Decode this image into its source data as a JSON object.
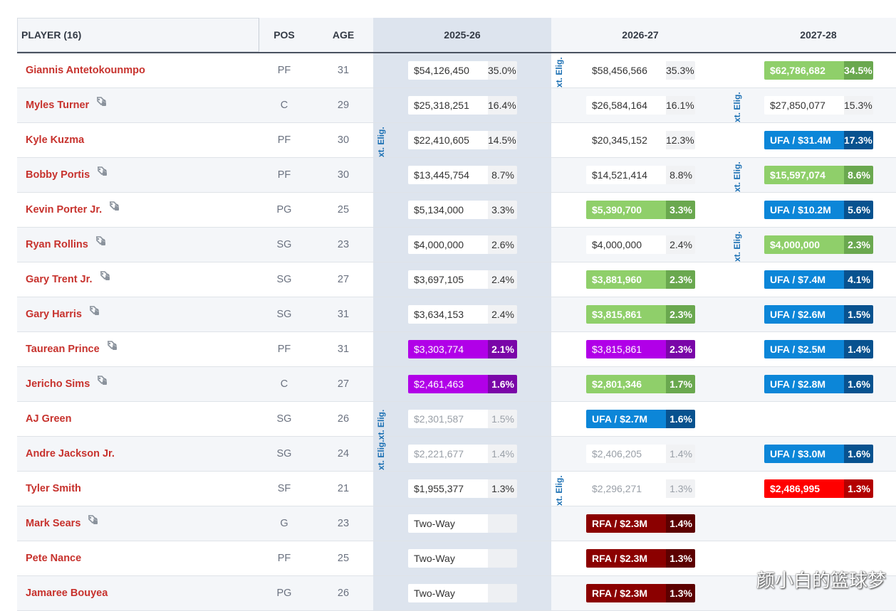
{
  "header": {
    "player": "PLAYER (16)",
    "pos": "POS",
    "age": "AGE",
    "seasons": [
      "2025-26",
      "2026-27",
      "2027-28"
    ]
  },
  "players": [
    {
      "name": "Giannis Antetokounmpo",
      "icon": false,
      "pos": "PF",
      "age": "31",
      "y1": {
        "amt": "$54,126,450",
        "pct": "35.0%",
        "style": "white"
      },
      "y2": {
        "amt": "$58,456,566",
        "pct": "35.3%",
        "style": "white"
      },
      "y3": {
        "amt": "$62,786,682",
        "pct": "34.5%",
        "style": "green"
      }
    },
    {
      "name": "Myles Turner",
      "icon": true,
      "pos": "C",
      "age": "29",
      "y1": {
        "amt": "$25,318,251",
        "pct": "16.4%",
        "style": "white"
      },
      "y2": {
        "amt": "$26,584,164",
        "pct": "16.1%",
        "style": "white"
      },
      "y3": {
        "amt": "$27,850,077",
        "pct": "15.3%",
        "style": "white"
      }
    },
    {
      "name": "Kyle Kuzma",
      "icon": false,
      "pos": "PF",
      "age": "30",
      "y1": {
        "amt": "$22,410,605",
        "pct": "14.5%",
        "style": "white"
      },
      "y2": {
        "amt": "$20,345,152",
        "pct": "12.3%",
        "style": "white"
      },
      "y3": {
        "amt": "UFA / $31.4M",
        "pct": "17.3%",
        "style": "blue"
      }
    },
    {
      "name": "Bobby Portis",
      "icon": true,
      "pos": "PF",
      "age": "30",
      "y1": {
        "amt": "$13,445,754",
        "pct": "8.7%",
        "style": "white"
      },
      "y2": {
        "amt": "$14,521,414",
        "pct": "8.8%",
        "style": "white"
      },
      "y3": {
        "amt": "$15,597,074",
        "pct": "8.6%",
        "style": "green"
      }
    },
    {
      "name": "Kevin Porter Jr.",
      "icon": true,
      "pos": "PG",
      "age": "25",
      "y1": {
        "amt": "$5,134,000",
        "pct": "3.3%",
        "style": "white"
      },
      "y2": {
        "amt": "$5,390,700",
        "pct": "3.3%",
        "style": "green"
      },
      "y3": {
        "amt": "UFA / $10.2M",
        "pct": "5.6%",
        "style": "blue"
      }
    },
    {
      "name": "Ryan Rollins",
      "icon": true,
      "pos": "SG",
      "age": "23",
      "y1": {
        "amt": "$4,000,000",
        "pct": "2.6%",
        "style": "white"
      },
      "y2": {
        "amt": "$4,000,000",
        "pct": "2.4%",
        "style": "white"
      },
      "y3": {
        "amt": "$4,000,000",
        "pct": "2.3%",
        "style": "green"
      }
    },
    {
      "name": "Gary Trent Jr.",
      "icon": true,
      "pos": "SG",
      "age": "27",
      "y1": {
        "amt": "$3,697,105",
        "pct": "2.4%",
        "style": "white"
      },
      "y2": {
        "amt": "$3,881,960",
        "pct": "2.3%",
        "style": "green"
      },
      "y3": {
        "amt": "UFA / $7.4M",
        "pct": "4.1%",
        "style": "blue"
      }
    },
    {
      "name": "Gary Harris",
      "icon": true,
      "pos": "SG",
      "age": "31",
      "y1": {
        "amt": "$3,634,153",
        "pct": "2.4%",
        "style": "white"
      },
      "y2": {
        "amt": "$3,815,861",
        "pct": "2.3%",
        "style": "green"
      },
      "y3": {
        "amt": "UFA / $2.6M",
        "pct": "1.5%",
        "style": "blue"
      }
    },
    {
      "name": "Taurean Prince",
      "icon": true,
      "pos": "PF",
      "age": "31",
      "y1": {
        "amt": "$3,303,774",
        "pct": "2.1%",
        "style": "purple"
      },
      "y2": {
        "amt": "$3,815,861",
        "pct": "2.3%",
        "style": "purple"
      },
      "y3": {
        "amt": "UFA / $2.5M",
        "pct": "1.4%",
        "style": "blue"
      }
    },
    {
      "name": "Jericho Sims",
      "icon": true,
      "pos": "C",
      "age": "27",
      "y1": {
        "amt": "$2,461,463",
        "pct": "1.6%",
        "style": "purple"
      },
      "y2": {
        "amt": "$2,801,346",
        "pct": "1.7%",
        "style": "green"
      },
      "y3": {
        "amt": "UFA / $2.8M",
        "pct": "1.6%",
        "style": "blue"
      }
    },
    {
      "name": "AJ Green",
      "icon": false,
      "pos": "SG",
      "age": "26",
      "y1": {
        "amt": "$2,301,587",
        "pct": "1.5%",
        "style": "faded"
      },
      "y2": {
        "amt": "UFA / $2.7M",
        "pct": "1.6%",
        "style": "blue"
      },
      "y3": null
    },
    {
      "name": "Andre Jackson Jr.",
      "icon": false,
      "pos": "SG",
      "age": "24",
      "y1": {
        "amt": "$2,221,677",
        "pct": "1.4%",
        "style": "faded"
      },
      "y2": {
        "amt": "$2,406,205",
        "pct": "1.4%",
        "style": "faded"
      },
      "y3": {
        "amt": "UFA / $3.0M",
        "pct": "1.6%",
        "style": "blue"
      }
    },
    {
      "name": "Tyler Smith",
      "icon": false,
      "pos": "SF",
      "age": "21",
      "y1": {
        "amt": "$1,955,377",
        "pct": "1.3%",
        "style": "white"
      },
      "y2": {
        "amt": "$2,296,271",
        "pct": "1.3%",
        "style": "faded"
      },
      "y3": {
        "amt": "$2,486,995",
        "pct": "1.3%",
        "style": "red"
      }
    },
    {
      "name": "Mark Sears",
      "icon": true,
      "pos": "G",
      "age": "23",
      "y1": {
        "amt": "Two-Way",
        "pct": "",
        "style": "twoway"
      },
      "y2": {
        "amt": "RFA / $2.3M",
        "pct": "1.4%",
        "style": "dred"
      },
      "y3": null
    },
    {
      "name": "Pete Nance",
      "icon": false,
      "pos": "PF",
      "age": "25",
      "y1": {
        "amt": "Two-Way",
        "pct": "",
        "style": "twoway"
      },
      "y2": {
        "amt": "RFA / $2.3M",
        "pct": "1.3%",
        "style": "dred"
      },
      "y3": null
    },
    {
      "name": "Jamaree Bouyea",
      "icon": false,
      "pos": "PG",
      "age": "26",
      "y1": {
        "amt": "Two-Way",
        "pct": "",
        "style": "twoway"
      },
      "y2": {
        "amt": "RFA / $2.3M",
        "pct": "1.3%",
        "style": "dred"
      },
      "y3": null
    }
  ],
  "ext_tags": [
    {
      "text": "xt. Elig.",
      "row": 0,
      "col": 2
    },
    {
      "text": "xt. Elig.",
      "row": 1,
      "col": 3
    },
    {
      "text": "xt. Elig.",
      "row": 2,
      "col": 1
    },
    {
      "text": "xt. Elig.",
      "row": 3,
      "col": 3
    },
    {
      "text": "xt. Elig.",
      "row": 5,
      "col": 3
    },
    {
      "text": "xt. Elig.xt. Elig.",
      "row": 10,
      "col": 1
    },
    {
      "text": "xt. Elig.",
      "row": 12,
      "col": 2
    }
  ],
  "watermark": "颜小白的篮球梦",
  "colors": {
    "name": "#c7322d",
    "green": "#8fcf6a",
    "blue": "#0c86d8",
    "purple": "#b100e8",
    "red": "#ff0000",
    "dark_red": "#8b0000",
    "ext_tag": "#1a6fb3"
  }
}
